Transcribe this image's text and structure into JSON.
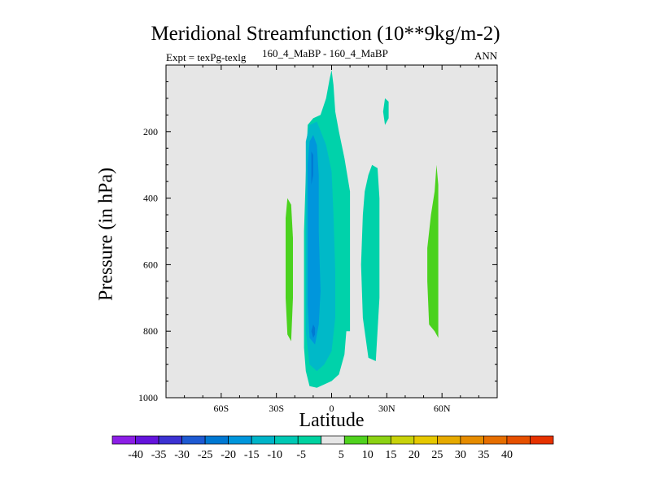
{
  "chart_data": {
    "type": "heatmap",
    "title": "Meridional Streamfunction (10**9kg/m-2)",
    "subtitle_left": "Expt = texPg-texlg",
    "subtitle_center": "160_4_MaBP - 160_4_MaBP",
    "subtitle_right": "ANN",
    "xlabel": "Latitude",
    "ylabel": "Pressure (in hPa)",
    "xlim": [
      -90,
      90
    ],
    "ylim": [
      1000,
      0
    ],
    "x_ticks": [
      {
        "value": -60,
        "label": "60S"
      },
      {
        "value": -30,
        "label": "30S"
      },
      {
        "value": 0,
        "label": "0"
      },
      {
        "value": 30,
        "label": "30N"
      },
      {
        "value": 60,
        "label": "60N"
      }
    ],
    "y_ticks": [
      {
        "value": 200,
        "label": "200"
      },
      {
        "value": 400,
        "label": "400"
      },
      {
        "value": 600,
        "label": "600"
      },
      {
        "value": 800,
        "label": "800"
      },
      {
        "value": 1000,
        "label": "1000"
      }
    ],
    "background_color": "#e6e6e6",
    "regions": [
      {
        "level": "-10 to -5",
        "color": "#00d2aa",
        "points": [
          [
            0,
            15
          ],
          [
            1,
            60
          ],
          [
            2,
            140
          ],
          [
            4,
            200
          ],
          [
            7,
            280
          ],
          [
            10,
            380
          ],
          [
            10,
            500
          ],
          [
            10,
            650
          ],
          [
            10,
            800
          ],
          [
            8,
            800
          ],
          [
            7,
            870
          ],
          [
            4,
            930
          ],
          [
            0,
            950
          ],
          [
            -4,
            960
          ],
          [
            -8,
            970
          ],
          [
            -12,
            965
          ],
          [
            -14,
            920
          ],
          [
            -15,
            850
          ],
          [
            -15,
            700
          ],
          [
            -15,
            500
          ],
          [
            -14,
            330
          ],
          [
            -13,
            180
          ],
          [
            -10,
            160
          ],
          [
            -6,
            150
          ],
          [
            -3,
            100
          ],
          [
            -1,
            40
          ]
        ]
      },
      {
        "level": "-15 to -10",
        "color": "#00b9c8",
        "points": [
          [
            -12,
            180
          ],
          [
            -8,
            170
          ],
          [
            -3,
            240
          ],
          [
            0,
            320
          ],
          [
            1,
            450
          ],
          [
            2,
            620
          ],
          [
            2,
            760
          ],
          [
            0,
            860
          ],
          [
            -4,
            900
          ],
          [
            -8,
            920
          ],
          [
            -12,
            900
          ],
          [
            -14,
            800
          ],
          [
            -14,
            600
          ],
          [
            -14,
            400
          ],
          [
            -14,
            230
          ]
        ]
      },
      {
        "level": "-20 to -15",
        "color": "#0096dc",
        "points": [
          [
            -12,
            230
          ],
          [
            -10,
            210
          ],
          [
            -8,
            240
          ],
          [
            -7,
            330
          ],
          [
            -7,
            500
          ],
          [
            -6,
            680
          ],
          [
            -7,
            780
          ],
          [
            -9,
            840
          ],
          [
            -12,
            820
          ],
          [
            -13,
            720
          ],
          [
            -13,
            560
          ],
          [
            -13,
            400
          ],
          [
            -13,
            300
          ]
        ]
      },
      {
        "level": "-25 to -20",
        "color": "#007ad2",
        "points": [
          [
            -11,
            260
          ],
          [
            -10,
            270
          ],
          [
            -10,
            330
          ],
          [
            -11,
            360
          ],
          [
            -11,
            320
          ]
        ]
      },
      {
        "level": "-25 to -20",
        "color": "#007ad2",
        "points": [
          [
            -10,
            780
          ],
          [
            -9,
            790
          ],
          [
            -9,
            810
          ],
          [
            -10,
            820
          ],
          [
            -11,
            800
          ]
        ]
      },
      {
        "level": "-10 to -5",
        "color": "#00d2aa",
        "points": [
          [
            20,
            330
          ],
          [
            22,
            300
          ],
          [
            25,
            310
          ],
          [
            26,
            400
          ],
          [
            26,
            550
          ],
          [
            26,
            700
          ],
          [
            24,
            890
          ],
          [
            20,
            880
          ],
          [
            17,
            760
          ],
          [
            16,
            600
          ],
          [
            17,
            450
          ],
          [
            18,
            380
          ]
        ]
      },
      {
        "level": "-10 to -5",
        "color": "#00d2aa",
        "points": [
          [
            29,
            100
          ],
          [
            31,
            110
          ],
          [
            31,
            160
          ],
          [
            29,
            180
          ],
          [
            28,
            140
          ]
        ]
      },
      {
        "level": "5 to 10",
        "color": "#4bd21e",
        "points": [
          [
            -24,
            400
          ],
          [
            -22,
            420
          ],
          [
            -21,
            520
          ],
          [
            -21,
            700
          ],
          [
            -22,
            830
          ],
          [
            -24,
            810
          ],
          [
            -25,
            700
          ],
          [
            -25,
            560
          ],
          [
            -25,
            460
          ]
        ]
      },
      {
        "level": "5 to 10",
        "color": "#4bd21e",
        "points": [
          [
            57,
            300
          ],
          [
            58,
            360
          ],
          [
            58,
            500
          ],
          [
            58,
            650
          ],
          [
            58,
            820
          ],
          [
            56,
            800
          ],
          [
            53,
            780
          ],
          [
            52,
            650
          ],
          [
            52,
            550
          ],
          [
            54,
            450
          ],
          [
            56,
            380
          ]
        ]
      }
    ],
    "colorbar": {
      "labels": [
        "-40",
        "-35",
        "-30",
        "-25",
        "-20",
        "-15",
        "-10",
        "-5",
        "5",
        "10",
        "15",
        "20",
        "25",
        "30",
        "35",
        "40"
      ],
      "colors": [
        "#8c1ee6",
        "#6414dc",
        "#3c32d2",
        "#1e5ad2",
        "#0078d2",
        "#0096dc",
        "#00b4c8",
        "#00c8b4",
        "#00d2a0",
        "#e6e6e6",
        "#50d21e",
        "#8cd214",
        "#c8d20a",
        "#e6c800",
        "#e6aa00",
        "#e68c00",
        "#e66e00",
        "#e65000",
        "#e63200"
      ]
    }
  }
}
